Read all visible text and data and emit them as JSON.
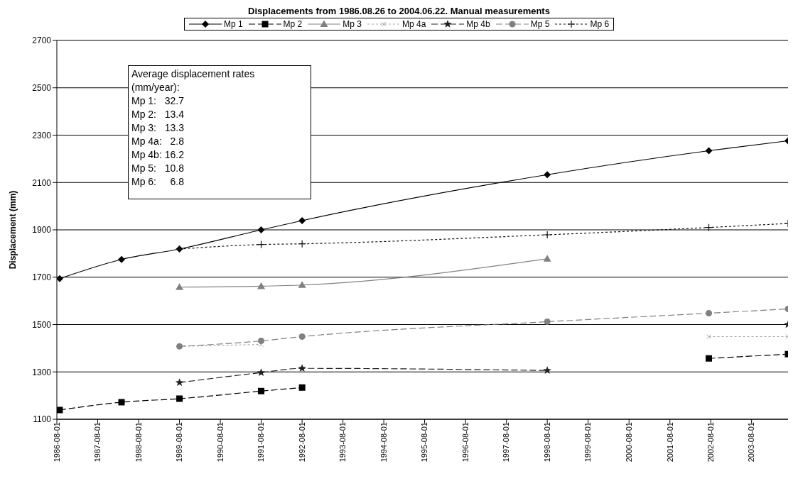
{
  "chart_data": {
    "type": "line",
    "title": "Displacements from 1986.08.26 to 2004.06.22. Manual measurements",
    "ylabel": "Displacement (mm)",
    "x": [
      "1986-08-26",
      "1988-03-01",
      "1989-08-01",
      "1991-08-01",
      "1992-08-01",
      "1998-08-01",
      "2002-07-15",
      "2004-06-22"
    ],
    "series": [
      {
        "name": "Mp 1",
        "color": "#000000",
        "marker": "diamond",
        "line_style": "solid",
        "values": [
          1694,
          1775,
          1819,
          1900,
          1939,
          2133,
          2234,
          2276
        ]
      },
      {
        "name": "Mp 2",
        "color": "#000000",
        "marker": "square",
        "line_style": "dashed",
        "values": [
          1139,
          1172,
          1187,
          1219,
          1234,
          null,
          1357,
          1375
        ]
      },
      {
        "name": "Mp 3",
        "color": "#808080",
        "marker": "triangle",
        "line_style": "solid",
        "values": [
          null,
          null,
          1658,
          1662,
          1667,
          1778,
          null,
          null
        ]
      },
      {
        "name": "Mp 4a",
        "color": "#a6a6a6",
        "marker": "cross",
        "line_style": "dotted",
        "values": [
          null,
          null,
          1408,
          1416,
          null,
          null,
          1449,
          1449
        ]
      },
      {
        "name": "Mp 4b",
        "color": "#202020",
        "marker": "star",
        "line_style": "dashed",
        "values": [
          null,
          null,
          1255,
          1297,
          1315,
          1306,
          null,
          1500
        ]
      },
      {
        "name": "Mp 5",
        "color": "#808080",
        "marker": "circle",
        "line_style": "dashed",
        "values": [
          null,
          null,
          1408,
          1431,
          1449,
          1512,
          1548,
          1566
        ]
      },
      {
        "name": "Mp 6",
        "color": "#101010",
        "marker": "plus",
        "line_style": "dotted",
        "values": [
          null,
          null,
          1819,
          1838,
          1841,
          1879,
          1910,
          1927
        ]
      }
    ],
    "xlim": [
      "1986-08-01",
      "2004-06-22"
    ],
    "xticks": [
      "1986-08-01",
      "1987-08-01",
      "1988-08-01",
      "1989-08-01",
      "1990-08-01",
      "1991-08-01",
      "1992-08-01",
      "1993-08-01",
      "1994-08-01",
      "1995-08-01",
      "1996-08-01",
      "1997-08-01",
      "1998-08-01",
      "1999-08-01",
      "2000-08-01",
      "2001-08-01",
      "2002-08-01",
      "2003-08-01"
    ],
    "ylim": [
      1100,
      2700
    ],
    "yticks": [
      1100,
      1300,
      1500,
      1700,
      1900,
      2100,
      2300,
      2500,
      2700
    ],
    "grid": "y",
    "legend": "top",
    "annotations": [
      "Average displacement rates",
      "(mm/year):",
      "Mp 1:   32.7",
      "Mp 2:   13.4",
      "Mp 3:   13.3",
      "Mp 4a:   2.8",
      "Mp 4b: 16.2",
      "Mp 5:   10.8",
      "Mp 6:     6.8"
    ]
  }
}
